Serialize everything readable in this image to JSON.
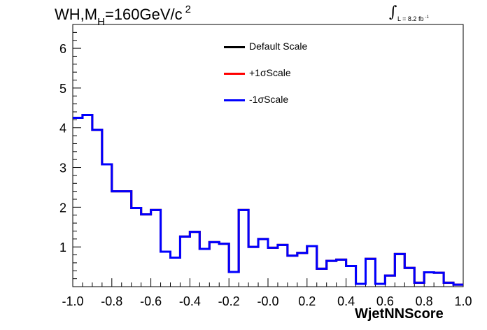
{
  "title": {
    "main": "WH,M",
    "sub": "H",
    "rest": "=160GeV/c",
    "sup": "2"
  },
  "lumi": {
    "integral_symbol": "∫",
    "text": "L = 8.2 fb",
    "sup": "-1"
  },
  "chart_data": {
    "type": "line",
    "xlabel": "WjetNNScore",
    "ylabel": "",
    "xlim": [
      -1.0,
      1.0
    ],
    "ylim": [
      0,
      6.6
    ],
    "x_ticks": [
      "-1.0",
      "-0.8",
      "-0.6",
      "-0.4",
      "-0.2",
      "-0.0",
      "0.2",
      "0.4",
      "0.6",
      "0.8",
      "1.0"
    ],
    "y_ticks": [
      "1",
      "2",
      "3",
      "4",
      "5",
      "6"
    ],
    "bin_edges": [
      -1.0,
      -0.95,
      -0.9,
      -0.85,
      -0.8,
      -0.75,
      -0.7,
      -0.65,
      -0.6,
      -0.55,
      -0.5,
      -0.45,
      -0.4,
      -0.35,
      -0.3,
      -0.25,
      -0.2,
      -0.15,
      -0.1,
      -0.05,
      0.0,
      0.05,
      0.1,
      0.15,
      0.2,
      0.25,
      0.3,
      0.35,
      0.4,
      0.45,
      0.5,
      0.55,
      0.6,
      0.65,
      0.7,
      0.75,
      0.8,
      0.85,
      0.9,
      0.95,
      1.0
    ],
    "series": [
      {
        "name": "Default Scale",
        "color": "#000000",
        "values": [
          4.25,
          4.32,
          3.95,
          3.08,
          2.4,
          2.4,
          1.98,
          1.82,
          1.93,
          0.88,
          0.73,
          1.26,
          1.38,
          0.95,
          1.12,
          1.08,
          0.37,
          1.93,
          1.0,
          1.2,
          0.98,
          1.05,
          0.78,
          0.85,
          1.02,
          0.45,
          0.65,
          0.68,
          0.52,
          0.07,
          0.7,
          0.07,
          0.28,
          0.82,
          0.47,
          0.1,
          0.36,
          0.35,
          0.1,
          0.05
        ]
      },
      {
        "name": "+1σScale",
        "color": "#ff0000",
        "values": [
          4.25,
          4.32,
          3.95,
          3.08,
          2.4,
          2.4,
          1.98,
          1.82,
          1.93,
          0.88,
          0.73,
          1.26,
          1.38,
          0.95,
          1.12,
          1.08,
          0.37,
          1.93,
          1.0,
          1.2,
          0.98,
          1.05,
          0.78,
          0.85,
          1.02,
          0.45,
          0.65,
          0.68,
          0.52,
          0.07,
          0.7,
          0.07,
          0.28,
          0.82,
          0.47,
          0.1,
          0.36,
          0.35,
          0.1,
          0.05
        ]
      },
      {
        "name": "-1σScale",
        "color": "#0000ff",
        "values": [
          4.25,
          4.32,
          3.95,
          3.08,
          2.4,
          2.4,
          1.98,
          1.82,
          1.93,
          0.88,
          0.73,
          1.26,
          1.38,
          0.95,
          1.12,
          1.08,
          0.37,
          1.93,
          1.0,
          1.2,
          0.98,
          1.05,
          0.78,
          0.85,
          1.02,
          0.45,
          0.65,
          0.68,
          0.52,
          0.07,
          0.7,
          0.07,
          0.28,
          0.82,
          0.47,
          0.1,
          0.36,
          0.35,
          0.1,
          0.05
        ]
      }
    ],
    "legend_placement": "top-center",
    "grid": false
  }
}
